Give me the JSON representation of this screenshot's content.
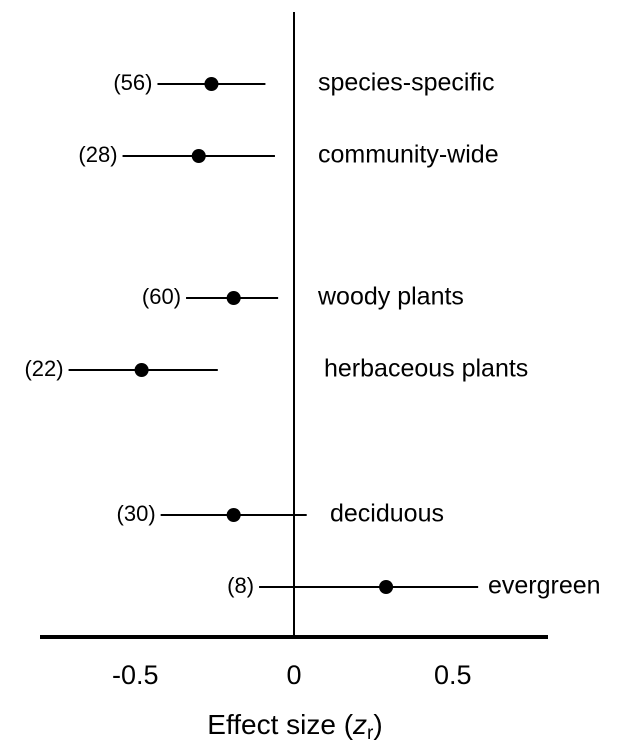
{
  "chart_data": {
    "type": "forest",
    "categories": [
      "species-specific",
      "community-wide",
      "woody plants",
      "herbaceous plants",
      "deciduous",
      "evergreen"
    ],
    "sample_sizes": [
      "(56)",
      "(28)",
      "(60)",
      "(22)",
      "(30)",
      "(8)"
    ],
    "values": [
      -0.26,
      -0.3,
      -0.19,
      -0.48,
      -0.19,
      0.29
    ],
    "ci_low": [
      -0.43,
      -0.54,
      -0.34,
      -0.71,
      -0.42,
      -0.11
    ],
    "ci_high": [
      -0.09,
      -0.06,
      -0.05,
      -0.24,
      0.04,
      0.58
    ],
    "color": "#000000",
    "xlim": [
      -0.8,
      0.8
    ],
    "xticks": [
      -0.5,
      0,
      0.5
    ],
    "xlabel": [
      "Effect size (",
      "z",
      "r",
      ")"
    ]
  }
}
